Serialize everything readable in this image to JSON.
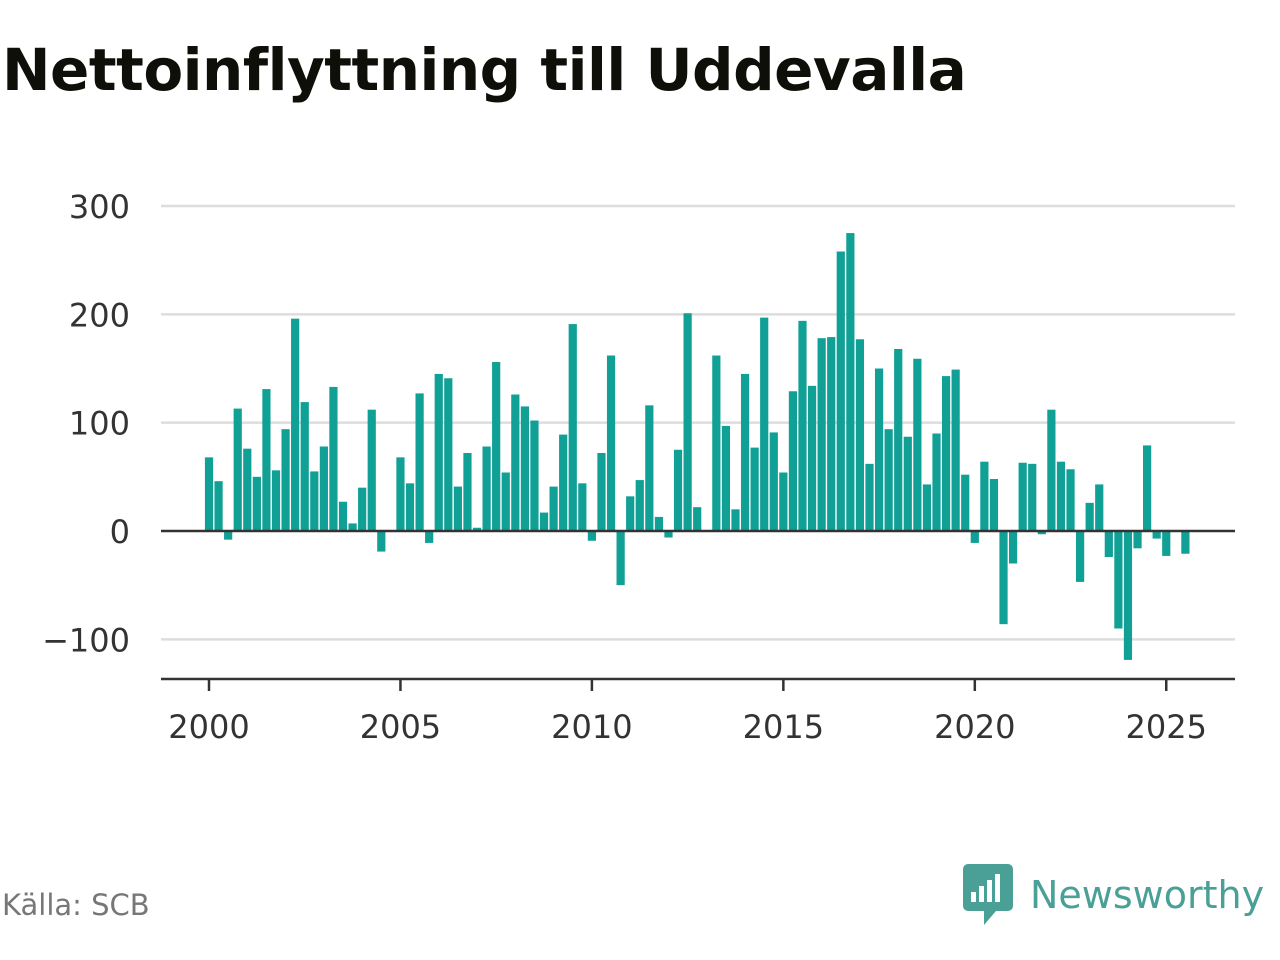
{
  "title": "Nettoinflyttning till Uddevalla",
  "source": "Källa: SCB",
  "brand": {
    "name": "Newsworthy",
    "icon": "newsworthy-logo-icon"
  },
  "colors": {
    "bar": "#11a096",
    "brand": "#4aa096",
    "grid": "#dddddd",
    "baseline": "#333333",
    "text": "#333333"
  },
  "chart_data": {
    "type": "bar",
    "title": "Nettoinflyttning till Uddevalla",
    "xlabel": "",
    "ylabel": "",
    "frequency": "quarterly",
    "x_ticks": [
      2000,
      2005,
      2010,
      2015,
      2020,
      2025
    ],
    "y_ticks": [
      -100,
      0,
      100,
      200,
      300
    ],
    "y_tick_labels": [
      "−100",
      "0",
      "100",
      "200",
      "300"
    ],
    "ylim": [
      -135,
      310
    ],
    "xlim": [
      1999.75,
      2026.75
    ],
    "grid": true,
    "legend": "none",
    "series": [
      {
        "start": 2000,
        "values": [
          68,
          46,
          -8,
          113,
          76,
          50,
          131,
          56,
          94,
          196,
          119,
          55,
          78,
          133,
          27,
          7,
          40,
          112,
          -19,
          null,
          68,
          44,
          127,
          -11,
          145,
          141,
          41,
          72,
          3,
          78,
          156,
          54,
          126,
          115,
          102,
          17,
          41,
          89,
          191,
          44,
          -9,
          72,
          162,
          -50,
          32,
          47,
          116,
          13,
          -6,
          75,
          201,
          22,
          null,
          162,
          97,
          20,
          145,
          77,
          197,
          91,
          54,
          129,
          194,
          134,
          178,
          179,
          258,
          275,
          177,
          62,
          150,
          94,
          168,
          87,
          159,
          43,
          90,
          143,
          149,
          52,
          -11,
          64,
          48,
          -86,
          -30,
          63,
          62,
          -3,
          112,
          64,
          57,
          -47,
          26,
          43,
          -24,
          -90,
          -119,
          -16,
          79,
          -7,
          -23,
          null,
          -21
        ]
      }
    ]
  }
}
